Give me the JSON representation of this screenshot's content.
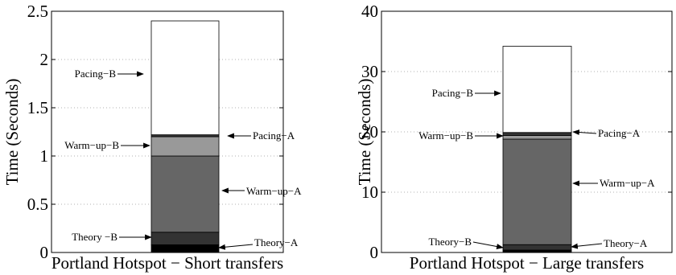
{
  "chart_data": [
    {
      "type": "bar",
      "stacked": true,
      "xlabel": "Portland Hotspot − Short transfers",
      "ylabel": "Time (Seconds)",
      "ylim": [
        0,
        2.5
      ],
      "yticks": [
        "0",
        "0.5",
        "1",
        "1.5",
        "2",
        "2.5"
      ],
      "yticks_values": [
        0,
        0.5,
        1,
        1.5,
        2,
        2.5
      ],
      "grid": true,
      "segments": [
        {
          "name": "Theory−A",
          "start": 0,
          "end": 0.08,
          "color": "#000000"
        },
        {
          "name": "Theory −B",
          "start": 0.08,
          "end": 0.21,
          "color": "#333333"
        },
        {
          "name": "Warm−up−A",
          "start": 0.21,
          "end": 1.0,
          "color": "#666666"
        },
        {
          "name": "Warm−up−B",
          "start": 1.0,
          "end": 1.2,
          "color": "#999999"
        },
        {
          "name": "Pacing−A",
          "start": 1.2,
          "end": 1.22,
          "color": "#333333"
        },
        {
          "name": "Pacing−B",
          "start": 1.22,
          "end": 2.4,
          "color": "#ffffff"
        }
      ]
    },
    {
      "type": "bar",
      "stacked": true,
      "xlabel": "Portland Hotspot − Large transfers",
      "ylabel": "Time (Seconds)",
      "ylim": [
        0,
        40
      ],
      "yticks": [
        "0",
        "10",
        "20",
        "30",
        "40"
      ],
      "yticks_values": [
        0,
        10,
        20,
        30,
        40
      ],
      "grid": true,
      "segments": [
        {
          "name": "Theory−A",
          "start": 0,
          "end": 0.4,
          "color": "#000000"
        },
        {
          "name": "Theory−B",
          "start": 0.4,
          "end": 1.3,
          "color": "#333333"
        },
        {
          "name": "Warm−up−A",
          "start": 1.3,
          "end": 18.8,
          "color": "#666666"
        },
        {
          "name": "Warm−up−B",
          "start": 18.8,
          "end": 19.4,
          "color": "#999999"
        },
        {
          "name": "Pacing−A",
          "start": 19.4,
          "end": 19.9,
          "color": "#333333"
        },
        {
          "name": "Pacing−B",
          "start": 19.9,
          "end": 34.2,
          "color": "#ffffff"
        }
      ]
    }
  ]
}
